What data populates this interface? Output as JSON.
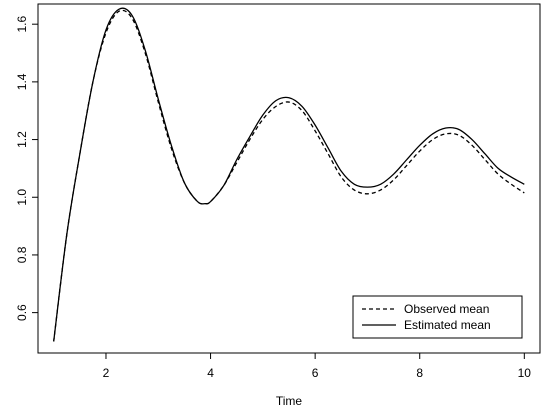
{
  "chart_data": {
    "type": "line",
    "title": "",
    "xlabel": "Time",
    "ylabel": "",
    "xlim": [
      0.7,
      10.3
    ],
    "ylim": [
      0.46,
      1.67
    ],
    "xticks": [
      2,
      4,
      6,
      8,
      10
    ],
    "xtick_labels": [
      "2",
      "4",
      "6",
      "8",
      "10"
    ],
    "yticks": [
      0.6,
      0.8,
      1.0,
      1.2,
      1.4,
      1.6
    ],
    "ytick_labels": [
      "0.6",
      "0.8",
      "1.0",
      "1.2",
      "1.4",
      "1.6"
    ],
    "grid": false,
    "legend_position": "bottom-right",
    "series": [
      {
        "name": "Observed mean",
        "line_style": "dashed",
        "color": "#000000",
        "points": [
          [
            1.0,
            0.5
          ],
          [
            1.25,
            0.87
          ],
          [
            1.5,
            1.15
          ],
          [
            1.75,
            1.4
          ],
          [
            2.0,
            1.57
          ],
          [
            2.25,
            1.645
          ],
          [
            2.5,
            1.62
          ],
          [
            2.75,
            1.5
          ],
          [
            3.0,
            1.33
          ],
          [
            3.25,
            1.17
          ],
          [
            3.5,
            1.05
          ],
          [
            3.75,
            0.985
          ],
          [
            3.9,
            0.978
          ],
          [
            4.0,
            0.985
          ],
          [
            4.25,
            1.04
          ],
          [
            4.5,
            1.12
          ],
          [
            4.75,
            1.2
          ],
          [
            5.0,
            1.27
          ],
          [
            5.25,
            1.315
          ],
          [
            5.5,
            1.33
          ],
          [
            5.75,
            1.3
          ],
          [
            6.0,
            1.23
          ],
          [
            6.25,
            1.15
          ],
          [
            6.5,
            1.07
          ],
          [
            6.75,
            1.025
          ],
          [
            7.0,
            1.012
          ],
          [
            7.25,
            1.025
          ],
          [
            7.5,
            1.06
          ],
          [
            7.75,
            1.11
          ],
          [
            8.0,
            1.16
          ],
          [
            8.25,
            1.2
          ],
          [
            8.5,
            1.22
          ],
          [
            8.75,
            1.215
          ],
          [
            9.0,
            1.18
          ],
          [
            9.25,
            1.13
          ],
          [
            9.5,
            1.08
          ],
          [
            9.75,
            1.045
          ],
          [
            10.0,
            1.015
          ]
        ]
      },
      {
        "name": "Estimated mean",
        "line_style": "solid",
        "color": "#000000",
        "points": [
          [
            1.0,
            0.5
          ],
          [
            1.25,
            0.87
          ],
          [
            1.5,
            1.15
          ],
          [
            1.75,
            1.4
          ],
          [
            2.0,
            1.58
          ],
          [
            2.25,
            1.652
          ],
          [
            2.5,
            1.63
          ],
          [
            2.75,
            1.51
          ],
          [
            3.0,
            1.34
          ],
          [
            3.25,
            1.18
          ],
          [
            3.5,
            1.05
          ],
          [
            3.75,
            0.985
          ],
          [
            3.9,
            0.978
          ],
          [
            4.0,
            0.985
          ],
          [
            4.25,
            1.04
          ],
          [
            4.5,
            1.13
          ],
          [
            4.75,
            1.21
          ],
          [
            5.0,
            1.285
          ],
          [
            5.25,
            1.335
          ],
          [
            5.5,
            1.345
          ],
          [
            5.75,
            1.315
          ],
          [
            6.0,
            1.25
          ],
          [
            6.25,
            1.17
          ],
          [
            6.5,
            1.09
          ],
          [
            6.75,
            1.045
          ],
          [
            7.0,
            1.035
          ],
          [
            7.25,
            1.045
          ],
          [
            7.5,
            1.08
          ],
          [
            7.75,
            1.13
          ],
          [
            8.0,
            1.18
          ],
          [
            8.25,
            1.22
          ],
          [
            8.5,
            1.24
          ],
          [
            8.75,
            1.235
          ],
          [
            9.0,
            1.2
          ],
          [
            9.25,
            1.15
          ],
          [
            9.5,
            1.1
          ],
          [
            9.75,
            1.07
          ],
          [
            10.0,
            1.045
          ]
        ]
      }
    ]
  }
}
